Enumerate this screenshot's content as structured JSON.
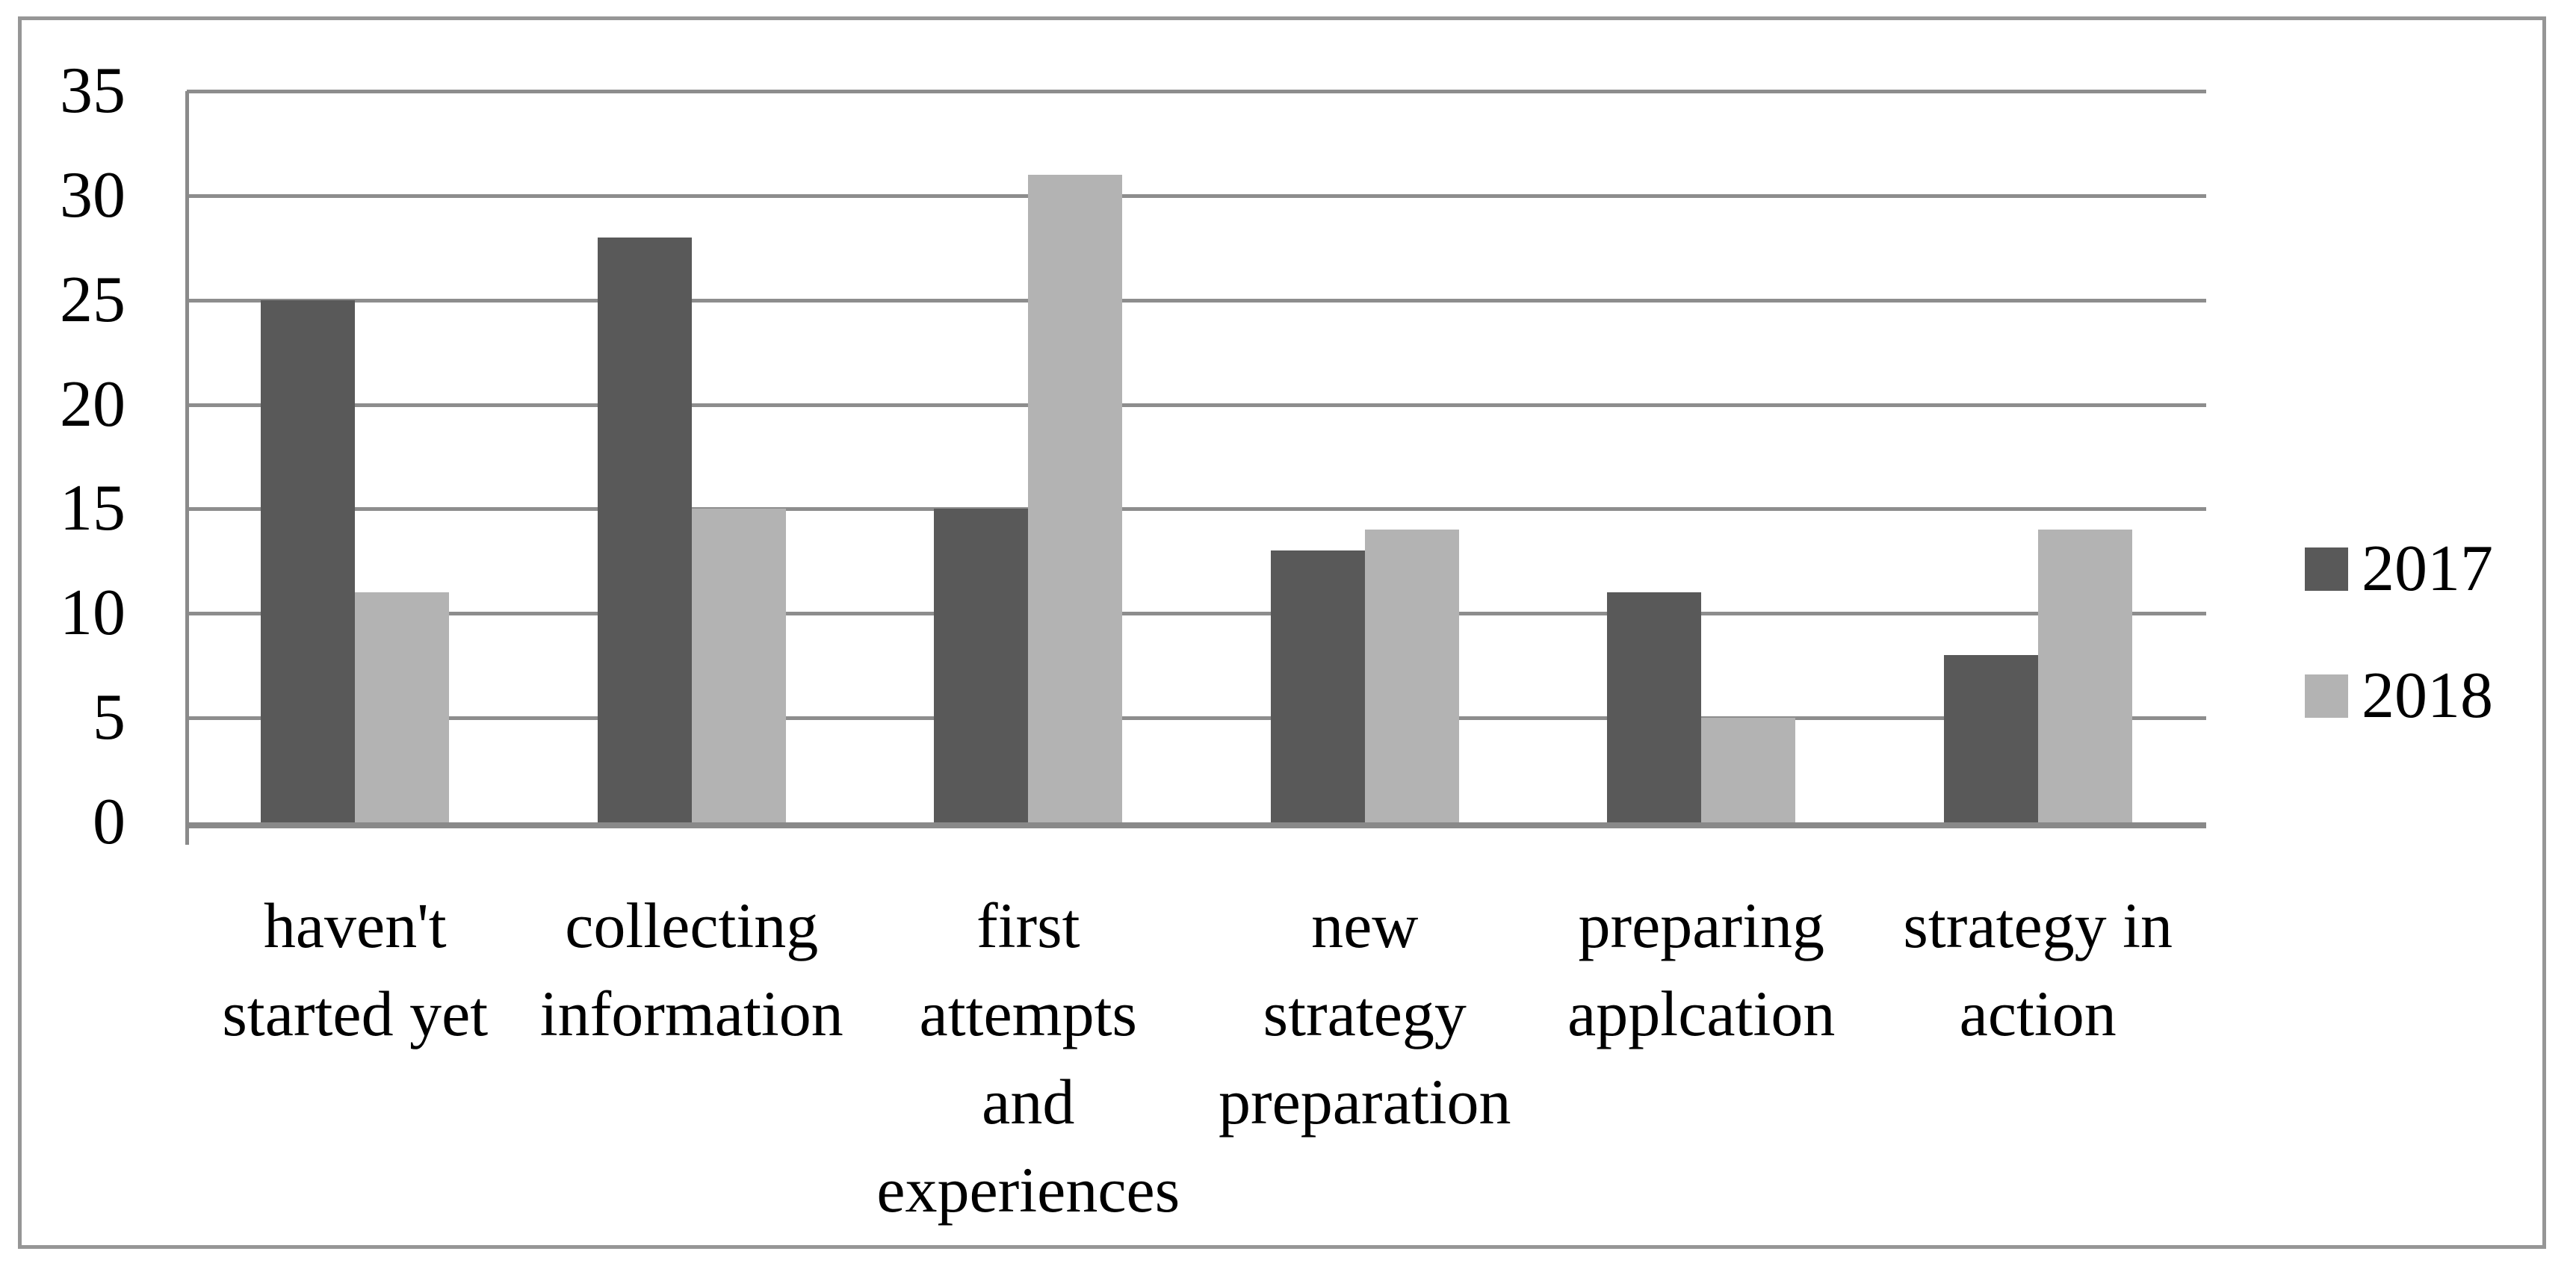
{
  "chart_data": {
    "type": "bar",
    "title": "",
    "xlabel": "",
    "ylabel": "",
    "grid": true,
    "legend_position": "right",
    "categories": [
      {
        "label": "haven't started yet",
        "lines": [
          "haven't",
          "started yet"
        ]
      },
      {
        "label": "collecting information",
        "lines": [
          "collecting",
          "information"
        ]
      },
      {
        "label": "first attempts and experiences",
        "lines": [
          "first",
          "attempts",
          "and",
          "experiences"
        ]
      },
      {
        "label": "new strategy preparation",
        "lines": [
          "new",
          "strategy",
          "preparation"
        ]
      },
      {
        "label": "preparing applcation",
        "lines": [
          "preparing",
          "applcation"
        ]
      },
      {
        "label": "strategy in action",
        "lines": [
          "strategy in",
          "action"
        ]
      }
    ],
    "series": [
      {
        "name": "2017",
        "color": "#595959",
        "values": [
          25,
          28,
          15,
          13,
          11,
          8
        ]
      },
      {
        "name": "2018",
        "color": "#b3b3b3",
        "values": [
          11,
          15,
          31,
          14,
          5,
          14
        ]
      }
    ],
    "y_axis": {
      "min": 0,
      "max": 35,
      "step": 5,
      "ticks": [
        "0",
        "5",
        "10",
        "15",
        "20",
        "25",
        "30",
        "35"
      ]
    }
  },
  "colors": {
    "background": "#ffffff",
    "frame": "#969696",
    "gridline": "#8d8d8d",
    "axis": "#898989",
    "series_2017": "#595959",
    "series_2018": "#b3b3b3",
    "text": "#000000"
  }
}
